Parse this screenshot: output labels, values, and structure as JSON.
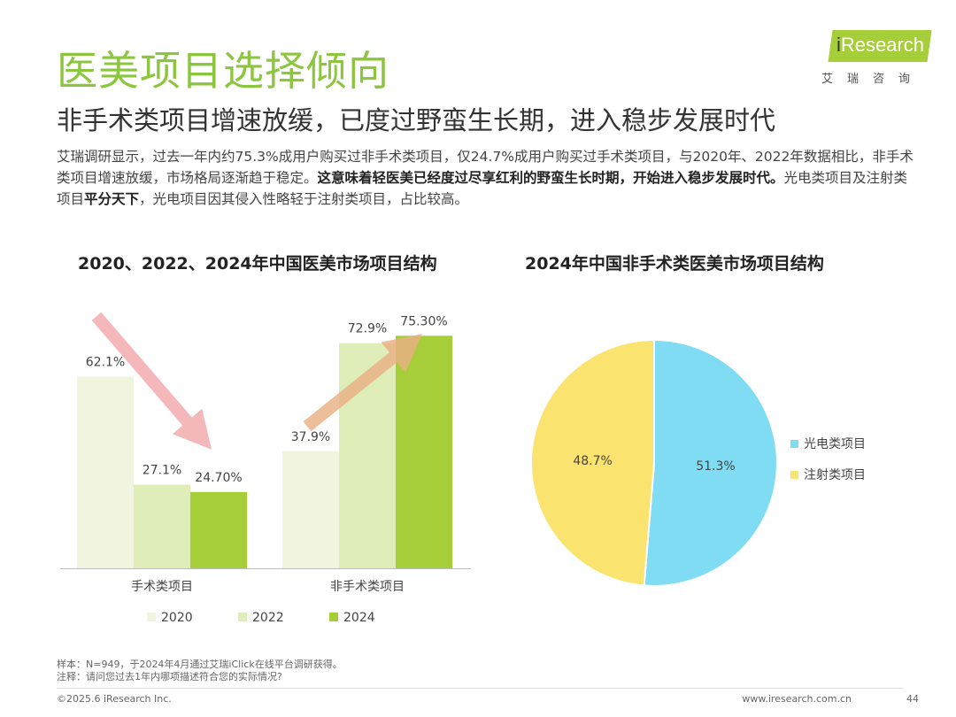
{
  "header": {
    "title": "医美项目选择倾向",
    "subtitle": "非手术类项目增速放缓，已度过野蛮生长期，进入稳步发展时代",
    "logo_text_i": "i",
    "logo_text_rest": "Research",
    "logo_cn": "艾瑞咨询"
  },
  "intro": {
    "part1": "艾瑞调研显示，过去一年内约75.3%成用户购买过非手术类项目，仅24.7%成用户购买过手术类项目，与2020年、2022年数据相比，非手术类项目增速放缓，市场格局逐渐趋于稳定。",
    "bold1": "这意味着轻医美已经度过尽享红利的野蛮生长时期，开始进入稳步发展时代。",
    "part2": "光电类项目及注射类项目",
    "bold2": "平分天下",
    "part3": "，光电项目因其侵入性略轻于注射类项目，占比较高。"
  },
  "chart_data": [
    {
      "type": "bar",
      "title": "2020、2022、2024年中国医美市场项目结构",
      "categories": [
        "手术类项目",
        "非手术类项目"
      ],
      "series": [
        {
          "name": "2020",
          "values": [
            62.1,
            37.9
          ],
          "labels": [
            "62.1%",
            "37.9%"
          ],
          "color": "#f1f5e0"
        },
        {
          "name": "2022",
          "values": [
            27.1,
            72.9
          ],
          "labels": [
            "27.1%",
            "72.9%"
          ],
          "color": "#dfedb9"
        },
        {
          "name": "2024",
          "values": [
            24.7,
            75.3
          ],
          "labels": [
            "24.70%",
            "75.30%"
          ],
          "color": "#a6ce39"
        }
      ],
      "ylim": [
        0,
        86
      ],
      "grid": false,
      "legend": "bottom"
    },
    {
      "type": "pie",
      "title": "2024年中国非手术类医美市场项目结构",
      "slices": [
        {
          "name": "光电类项目",
          "value": 51.3,
          "label": "51.3%",
          "color": "#7fdcf2"
        },
        {
          "name": "注射类项目",
          "value": 48.7,
          "label": "48.7%",
          "color": "#fae36e"
        }
      ],
      "legend": "right"
    }
  ],
  "footer": {
    "note1": "样本：N=949，于2024年4月通过艾瑞iClick在线平台调研获得。",
    "note2": "注释：请问您过去1年内哪项描述符合您的实际情况?",
    "copyright": "©2025.6 iResearch Inc.",
    "website": "www.iresearch.com.cn",
    "page": "44"
  }
}
